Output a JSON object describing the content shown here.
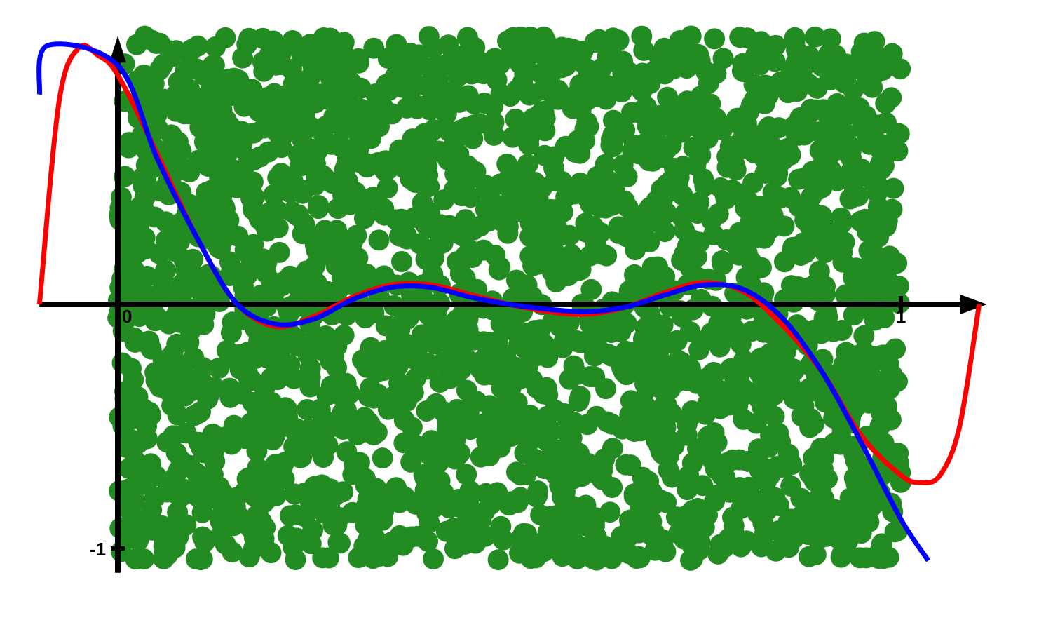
{
  "chart_data": {
    "type": "scatter",
    "title": "",
    "xlabel": "",
    "ylabel": "",
    "xlim": [
      -0.1,
      1.1
    ],
    "ylim": [
      -1.05,
      1.1
    ],
    "grid": false,
    "tick_labels": {
      "x_origin": "0",
      "x_one": "1",
      "y_minus_one": "-1"
    },
    "colors": {
      "points": "#228b22",
      "curve_red": "#ff0000",
      "curve_blue": "#0000ff",
      "axes": "#000000"
    },
    "scatter_region": {
      "x_range": [
        0,
        1
      ],
      "y_range": [
        -1.05,
        1.1
      ],
      "approx_point_count": 2600
    },
    "series": [
      {
        "color": "red",
        "x": [
          -0.1,
          -0.075,
          -0.05,
          -0.025,
          0,
          0.05,
          0.1,
          0.15,
          0.2,
          0.25,
          0.3,
          0.35,
          0.4,
          0.45,
          0.5,
          0.55,
          0.6,
          0.65,
          0.7,
          0.75,
          0.8,
          0.85,
          0.9,
          0.95,
          1.0,
          1.025,
          1.05,
          1.075,
          1.1
        ],
        "values": [
          0.0,
          0.83,
          1.05,
          1.02,
          0.94,
          0.62,
          0.28,
          0.01,
          -0.09,
          -0.05,
          0.03,
          0.08,
          0.08,
          0.04,
          0.0,
          -0.03,
          -0.04,
          -0.01,
          0.05,
          0.09,
          0.05,
          -0.09,
          -0.28,
          -0.54,
          -0.7,
          -0.73,
          -0.7,
          -0.5,
          0.0
        ]
      },
      {
        "color": "blue",
        "x": [
          -0.1,
          -0.09,
          0,
          0.05,
          0.1,
          0.15,
          0.2,
          0.25,
          0.3,
          0.35,
          0.4,
          0.45,
          0.5,
          0.55,
          0.6,
          0.65,
          0.7,
          0.75,
          0.8,
          0.85,
          0.9,
          0.95,
          1.0,
          1.035
        ],
        "values": [
          0.86,
          1.06,
          0.98,
          0.6,
          0.28,
          0.01,
          -0.08,
          -0.06,
          0.02,
          0.07,
          0.07,
          0.03,
          -0.0,
          -0.02,
          -0.03,
          -0.01,
          0.04,
          0.08,
          0.06,
          -0.06,
          -0.28,
          -0.57,
          -0.88,
          -1.05
        ]
      }
    ]
  }
}
